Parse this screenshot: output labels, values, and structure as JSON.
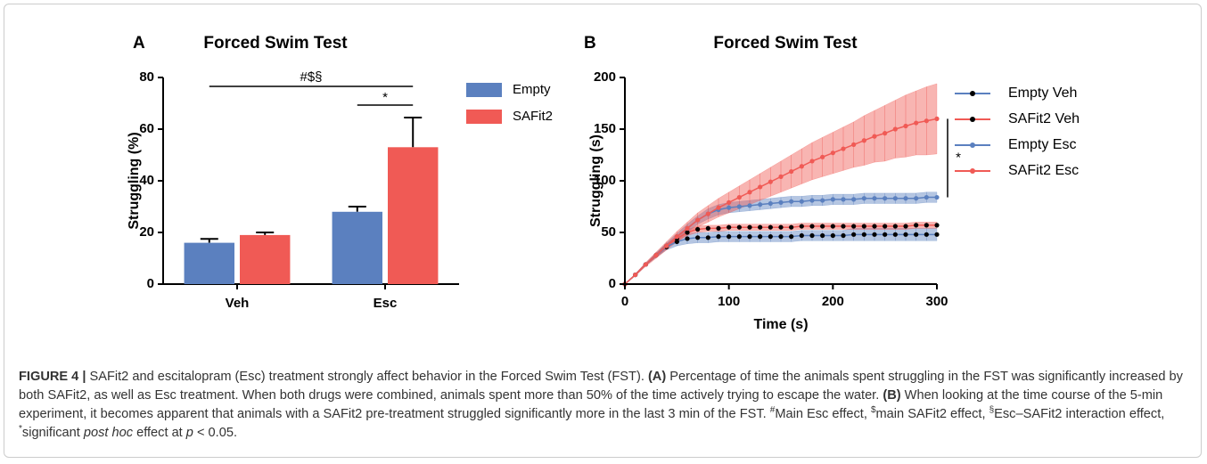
{
  "chart_data": [
    {
      "type": "bar",
      "panel": "A",
      "title": "Forced Swim Test",
      "y_label": "Struggling (%)",
      "categories": [
        "Veh",
        "Esc"
      ],
      "series": [
        {
          "name": "Empty",
          "color": "#5b80bf",
          "values": [
            16,
            28
          ],
          "errors": [
            1.5,
            2
          ]
        },
        {
          "name": "SAFit2",
          "color": "#f05a55",
          "values": [
            19,
            53
          ],
          "errors": [
            1,
            11.5
          ]
        }
      ],
      "ylim": [
        0,
        80
      ],
      "yticks": [
        0,
        20,
        40,
        60,
        80
      ],
      "annotations": [
        "#$§",
        "*"
      ]
    },
    {
      "type": "line",
      "panel": "B",
      "title": "Forced Swim Test",
      "x_label": "Time (s)",
      "y_label": "Struggling (s)",
      "x": [
        0,
        10,
        20,
        30,
        40,
        50,
        60,
        70,
        80,
        90,
        100,
        110,
        120,
        130,
        140,
        150,
        160,
        170,
        180,
        190,
        200,
        210,
        220,
        230,
        240,
        250,
        260,
        270,
        280,
        290,
        300
      ],
      "series": [
        {
          "name": "Empty Veh",
          "color": "#5b80bf",
          "marker_color": "#000000",
          "values": [
            0,
            9,
            19,
            28,
            36,
            41,
            44,
            45,
            45,
            46,
            46,
            46,
            46,
            46,
            46,
            46,
            46,
            47,
            47,
            47,
            47,
            47,
            48,
            48,
            48,
            48,
            48,
            48,
            48,
            48,
            48
          ],
          "errors": [
            0,
            1,
            1,
            2,
            3,
            4,
            5,
            5,
            5,
            5,
            5,
            5,
            5,
            5,
            5,
            5,
            5,
            5,
            5,
            5,
            5,
            5,
            6,
            6,
            6,
            6,
            6,
            6,
            6,
            6,
            6
          ]
        },
        {
          "name": "SAFit2 Veh",
          "color": "#f05a55",
          "marker_color": "#000000",
          "values": [
            0,
            9,
            19,
            28,
            37,
            44,
            50,
            53,
            54,
            54,
            55,
            55,
            55,
            55,
            55,
            55,
            55,
            56,
            56,
            56,
            56,
            56,
            56,
            56,
            56,
            56,
            56,
            56,
            57,
            57,
            57
          ],
          "errors": [
            0,
            1,
            1,
            2,
            2,
            3,
            3,
            3,
            3,
            3,
            3,
            3,
            3,
            3,
            3,
            3,
            3,
            3,
            3,
            3,
            3,
            3,
            3,
            3,
            3,
            3,
            3,
            3,
            3,
            3,
            3
          ]
        },
        {
          "name": "Empty Esc",
          "color": "#5b80bf",
          "marker_color": "#5b80bf",
          "values": [
            0,
            9,
            19,
            28,
            37,
            46,
            54,
            62,
            68,
            72,
            74,
            75,
            76,
            77,
            78,
            79,
            80,
            80,
            81,
            81,
            82,
            82,
            82,
            83,
            83,
            83,
            83,
            83,
            83,
            84,
            84
          ],
          "errors": [
            0,
            1,
            1,
            2,
            3,
            3,
            4,
            4,
            5,
            5,
            5,
            5,
            5,
            5,
            5,
            5,
            5,
            5,
            5,
            5,
            5,
            5,
            5,
            5,
            5,
            5,
            5,
            5,
            5,
            5,
            5
          ]
        },
        {
          "name": "SAFit2 Esc",
          "color": "#f05a55",
          "marker_color": "#f05a55",
          "values": [
            0,
            9,
            19,
            28,
            37,
            46,
            54,
            62,
            68,
            74,
            79,
            84,
            89,
            94,
            99,
            104,
            109,
            114,
            119,
            123,
            127,
            131,
            135,
            139,
            143,
            146,
            150,
            153,
            156,
            158,
            160
          ],
          "errors": [
            0,
            1,
            2,
            3,
            4,
            5,
            6,
            7,
            8,
            9,
            10,
            11,
            12,
            13,
            14,
            15,
            16,
            17,
            18,
            19,
            20,
            21,
            22,
            24,
            25,
            27,
            28,
            30,
            31,
            33,
            34
          ]
        }
      ],
      "xlim": [
        0,
        300
      ],
      "xticks": [
        0,
        100,
        200,
        300
      ],
      "ylim": [
        0,
        200
      ],
      "yticks": [
        0,
        50,
        100,
        150,
        200
      ],
      "annotations": [
        "*"
      ]
    }
  ],
  "caption": [
    {
      "text": "FIGURE 4 |",
      "style": "bold"
    },
    {
      "text": " SAFit2 and escitalopram (Esc) treatment strongly affect behavior in the Forced Swim Test (FST). "
    },
    {
      "text": "(A)",
      "style": "bold"
    },
    {
      "text": " Percentage of time the animals spent struggling in the FST was significantly increased by both SAFit2, as well as Esc treatment. When both drugs were combined, animals spent more than 50% of the time actively trying to escape the water. "
    },
    {
      "text": "(B)",
      "style": "bold"
    },
    {
      "text": " When looking at the time course of the 5-min experiment, it becomes apparent that animals with a SAFit2 pre-treatment struggled significantly more in the last 3 min of the FST. "
    },
    {
      "text": "#",
      "style": "sup"
    },
    {
      "text": "Main Esc effect, "
    },
    {
      "text": "$",
      "style": "sup"
    },
    {
      "text": "main SAFit2 effect, "
    },
    {
      "text": "§",
      "style": "sup"
    },
    {
      "text": "Esc–SAFit2 interaction effect, "
    },
    {
      "text": "*",
      "style": "sup"
    },
    {
      "text": "significant "
    },
    {
      "text": "post hoc",
      "style": "italic"
    },
    {
      "text": " effect at "
    },
    {
      "text": "p",
      "style": "italic"
    },
    {
      "text": " < 0.05."
    }
  ]
}
